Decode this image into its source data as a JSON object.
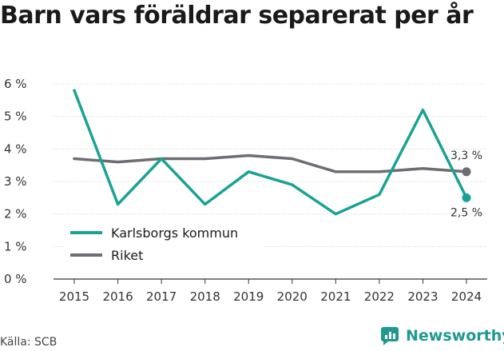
{
  "page": {
    "title": "Barn vars föräldrar separerat per år"
  },
  "source": "Källa: SCB",
  "brand": {
    "name": "Newsworthy",
    "icon": "newsworthy-logo-icon"
  },
  "chart_data": {
    "type": "line",
    "x": [
      "2015",
      "2016",
      "2017",
      "2018",
      "2019",
      "2020",
      "2021",
      "2022",
      "2023",
      "2024"
    ],
    "series": [
      {
        "name": "Karlsborgs kommun",
        "color": "#1aa394",
        "values": [
          5.8,
          2.3,
          3.7,
          2.3,
          3.3,
          2.9,
          2.0,
          2.6,
          5.2,
          2.5
        ],
        "end_label": "2,5 %"
      },
      {
        "name": "Riket",
        "color": "#6d6d73",
        "values": [
          3.7,
          3.6,
          3.7,
          3.7,
          3.8,
          3.7,
          3.3,
          3.3,
          3.4,
          3.3
        ],
        "end_label": "3,3 %"
      }
    ],
    "yticks": [
      "0 %",
      "1 %",
      "2 %",
      "3 %",
      "4 %",
      "5 %",
      "6 %"
    ],
    "ylim": [
      0,
      6
    ],
    "grid": "horizontal",
    "legend": "bottom-left"
  }
}
